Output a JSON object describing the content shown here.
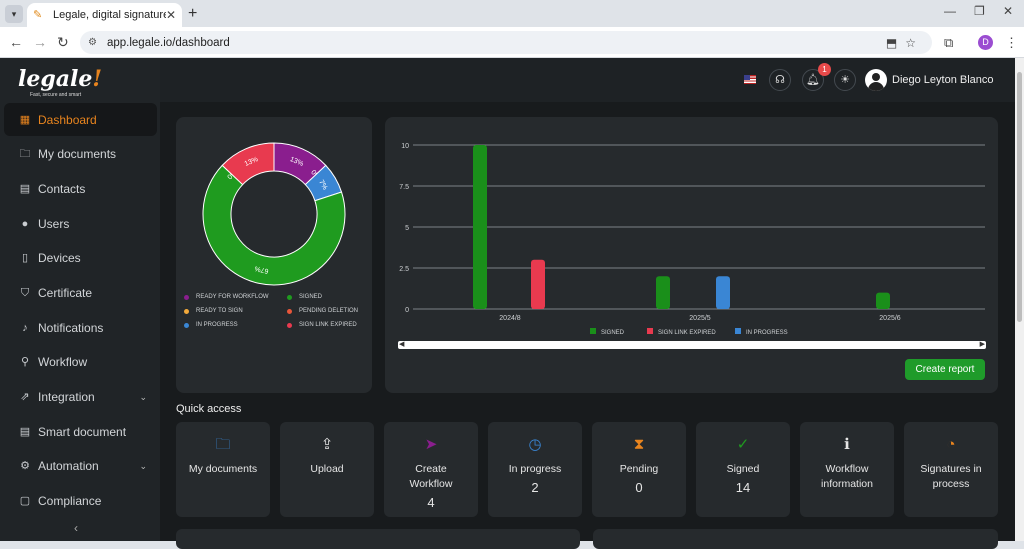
{
  "browser": {
    "tab_title": "Legale, digital signature",
    "url": "app.legale.io/dashboard",
    "profile_initial": "D"
  },
  "sidebar": {
    "logo": "legale",
    "logo_tagline": "Fast, secure and smart",
    "items": [
      {
        "label": "Dashboard",
        "icon": "dashboard-icon",
        "active": true
      },
      {
        "label": "My documents",
        "icon": "folder-icon"
      },
      {
        "label": "Contacts",
        "icon": "contacts-icon"
      },
      {
        "label": "Users",
        "icon": "user-icon"
      },
      {
        "label": "Devices",
        "icon": "device-icon"
      },
      {
        "label": "Certificate",
        "icon": "shield-icon"
      },
      {
        "label": "Notifications",
        "icon": "bell-icon"
      },
      {
        "label": "Workflow",
        "icon": "workflow-icon"
      },
      {
        "label": "Integration",
        "icon": "external-icon",
        "expandable": true
      },
      {
        "label": "Smart document",
        "icon": "document-icon"
      },
      {
        "label": "Automation",
        "icon": "gear-icon",
        "expandable": true
      },
      {
        "label": "Compliance",
        "icon": "chat-icon"
      }
    ]
  },
  "header": {
    "notification_count": "1",
    "user_name": "Diego Leyton Blanco"
  },
  "donut": {
    "slices": [
      {
        "label": "READY FOR WORKFLOW",
        "value": 13,
        "pct": "13%",
        "color": "#8a1e8e"
      },
      {
        "label": "READY TO SIGN",
        "value": 0,
        "pct": "0%",
        "color": "#f2a93b"
      },
      {
        "label": "IN PROGRESS",
        "value": 7,
        "pct": "7%",
        "color": "#3a86d4"
      },
      {
        "label": "SIGNED",
        "value": 67,
        "pct": "67%",
        "color": "#1f9b1f"
      },
      {
        "label": "PENDING DELETION",
        "value": 0,
        "pct": "0%",
        "color": "#e8563a"
      },
      {
        "label": "SIGN LINK EXPIRED",
        "value": 13,
        "pct": "13%",
        "color": "#e83a4f"
      }
    ]
  },
  "chart_data": {
    "type": "bar",
    "categories": [
      "2024/8",
      "2025/5",
      "2025/6"
    ],
    "series": [
      {
        "name": "SIGNED",
        "values": [
          10,
          2,
          1
        ],
        "color": "#1a8f1a"
      },
      {
        "name": "SIGN LINK EXPIRED",
        "values": [
          3,
          0,
          0
        ],
        "color": "#e83a4f"
      },
      {
        "name": "IN PROGRESS",
        "values": [
          0,
          2,
          0
        ],
        "color": "#3a86d4"
      }
    ],
    "yticks": [
      "0",
      "2.5",
      "5",
      "7.5",
      "10"
    ],
    "ylim": [
      0,
      10
    ],
    "legend": "bottom"
  },
  "report_button": "Create report",
  "quick_access": {
    "title": "Quick access",
    "items": [
      {
        "label": "My documents",
        "value": "",
        "icon": "folder-icon",
        "color": "#3a86d4"
      },
      {
        "label": "Upload",
        "value": "",
        "icon": "upload-icon",
        "color": "#e6e6e6"
      },
      {
        "label": "Create Workflow",
        "value": "4",
        "icon": "send-icon",
        "color": "#8a1e8e"
      },
      {
        "label": "In progress",
        "value": "2",
        "icon": "clock-icon",
        "color": "#3a86d4"
      },
      {
        "label": "Pending",
        "value": "0",
        "icon": "hourglass-icon",
        "color": "#e8841e"
      },
      {
        "label": "Signed",
        "value": "14",
        "icon": "check-icon",
        "color": "#1f9b1f"
      },
      {
        "label": "Workflow information",
        "value": "",
        "icon": "info-icon",
        "color": "#e6e6e6"
      },
      {
        "label": "Signatures in process",
        "value": "",
        "icon": "timer-icon",
        "color": "#e8841e"
      }
    ]
  }
}
